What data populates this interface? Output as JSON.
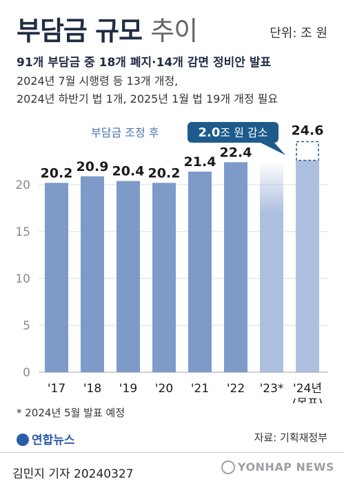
{
  "header": {
    "title_bold": "부담금 규모",
    "title_light": "추이",
    "unit": "단위: 조 원",
    "headline": "91개 부담금 중 18개 폐지·14개 감면 정비안 발표",
    "sub_line1": "2024년 7월 시행령 등 13개 개정,",
    "sub_line2": "2024년 하반기 법 1개, 2025년 1월 법 19개 개정 필요"
  },
  "chart_data": {
    "type": "bar",
    "categories": [
      "'17",
      "'18",
      "'19",
      "'20",
      "'21",
      "'22",
      "'23*",
      "'24년"
    ],
    "category_sublabels": [
      "",
      "",
      "",
      "",
      "",
      "",
      "",
      "(목표)"
    ],
    "values": [
      20.2,
      20.9,
      20.4,
      20.2,
      21.4,
      22.4,
      null,
      24.6
    ],
    "adjusted_2024": 22.6,
    "reduction_2024": 2.0,
    "ylim": [
      0,
      25
    ],
    "yticks": [
      0,
      5,
      10,
      15,
      20
    ],
    "grid": true,
    "annotation_label": "부담금 조정 후",
    "callout_value": "2.0",
    "callout_text": "조 원 감소",
    "colors": {
      "bar": "#7d9ac9",
      "bar_faded": "#adbfdf",
      "callout": "#1d5b8c",
      "grid": "#d9dde3",
      "label": "#1a1a1a",
      "annotation": "#4a72ad"
    }
  },
  "footer": {
    "footnote": "* 2024년 5월 발표 예정",
    "logo": "연합뉴스",
    "source": "자료: 기획재정부",
    "credit": "김민지 기자  20240327",
    "watermark": "YONHAP NEWS"
  }
}
